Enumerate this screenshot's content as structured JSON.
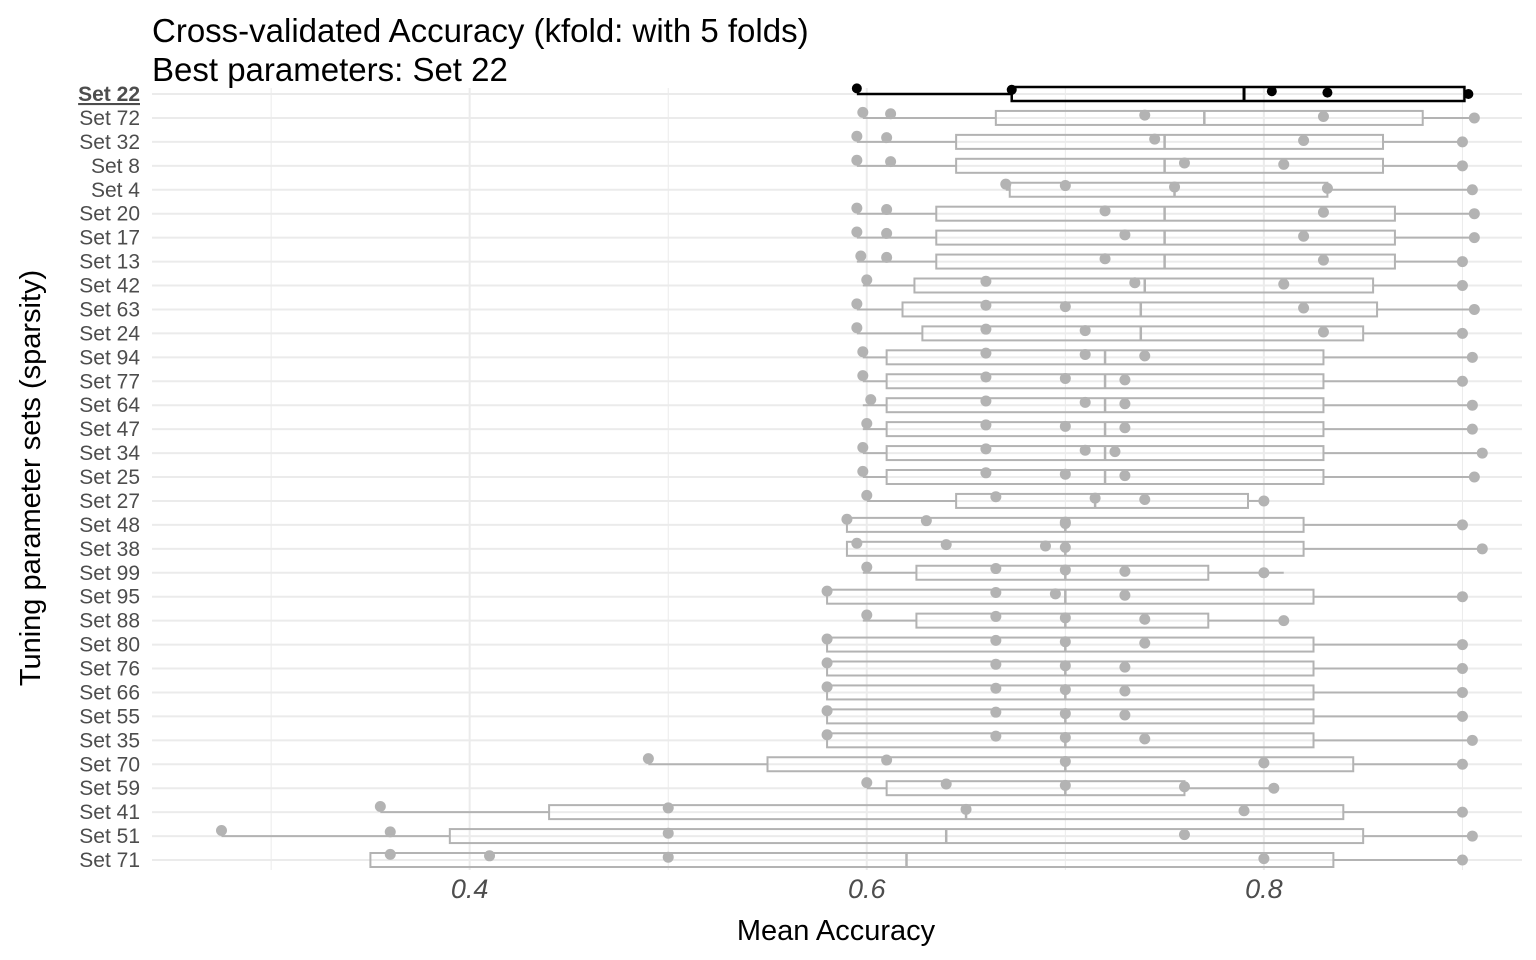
{
  "chart_data": {
    "type": "boxplot",
    "title": "Cross-validated Accuracy (kfold: with 5 folds)",
    "subtitle": "Best parameters: Set 22",
    "xlabel": "Mean Accuracy",
    "ylabel": "Tuning parameter sets (sparsity)",
    "xlim": [
      0.24,
      0.93
    ],
    "x_ticks": [
      0.4,
      0.6,
      0.8
    ],
    "x_tick_labels": [
      "0.4",
      "0.6",
      "0.8"
    ],
    "grid": true,
    "best_set": "Set 22",
    "colors": {
      "best": "#000000",
      "other": "#b3b3b3",
      "grid": "#ebebeb",
      "background": "#ffffff"
    },
    "y_tick_labels": [
      "Set 22",
      "Set 72",
      "Set 32",
      "Set 8",
      "Set 4",
      "Set 20",
      "Set 17",
      "Set 13",
      "Set 42",
      "Set 63",
      "Set 24",
      "Set 94",
      "Set 77",
      "Set 64",
      "Set 47",
      "Set 34",
      "Set 25",
      "Set 27",
      "Set 48",
      "Set 38",
      "Set 99",
      "Set 95",
      "Set 88",
      "Set 80",
      "Set 76",
      "Set 66",
      "Set 55",
      "Set 35",
      "Set 70",
      "Set 59",
      "Set 41",
      "Set 51",
      "Set 71"
    ],
    "labeled_sets": [
      {
        "name": "Set 22",
        "best": true,
        "min": 0.595,
        "q1": 0.673,
        "median": 0.79,
        "q3": 0.901,
        "max": 0.903,
        "points": [
          0.595,
          0.673,
          0.804,
          0.832,
          0.903
        ]
      },
      {
        "name": "Set 72",
        "min": 0.598,
        "q1": 0.665,
        "median": 0.77,
        "q3": 0.88,
        "max": 0.906,
        "points": [
          0.598,
          0.612,
          0.74,
          0.83,
          0.906
        ]
      },
      {
        "name": "Set 32",
        "min": 0.595,
        "q1": 0.645,
        "median": 0.75,
        "q3": 0.86,
        "max": 0.9,
        "points": [
          0.595,
          0.61,
          0.745,
          0.82,
          0.9
        ]
      },
      {
        "name": "Set 8",
        "min": 0.595,
        "q1": 0.645,
        "median": 0.75,
        "q3": 0.86,
        "max": 0.9,
        "points": [
          0.595,
          0.612,
          0.76,
          0.81,
          0.9
        ]
      },
      {
        "name": "Set 4",
        "min": 0.67,
        "q1": 0.672,
        "median": 0.755,
        "q3": 0.832,
        "max": 0.905,
        "points": [
          0.67,
          0.7,
          0.755,
          0.832,
          0.905
        ]
      },
      {
        "name": "Set 20",
        "min": 0.595,
        "q1": 0.635,
        "median": 0.75,
        "q3": 0.866,
        "max": 0.906,
        "points": [
          0.595,
          0.61,
          0.72,
          0.83,
          0.906
        ]
      },
      {
        "name": "Set 17",
        "min": 0.595,
        "q1": 0.635,
        "median": 0.75,
        "q3": 0.866,
        "max": 0.906,
        "points": [
          0.595,
          0.61,
          0.73,
          0.82,
          0.906
        ]
      },
      {
        "name": "Set 13",
        "min": 0.595,
        "q1": 0.635,
        "median": 0.75,
        "q3": 0.866,
        "max": 0.9,
        "points": [
          0.597,
          0.61,
          0.72,
          0.83,
          0.9
        ]
      },
      {
        "name": "Set 42",
        "min": 0.598,
        "q1": 0.624,
        "median": 0.74,
        "q3": 0.855,
        "max": 0.9,
        "points": [
          0.6,
          0.66,
          0.735,
          0.81,
          0.9
        ]
      },
      {
        "name": "Set 63",
        "min": 0.595,
        "q1": 0.618,
        "median": 0.738,
        "q3": 0.857,
        "max": 0.906,
        "points": [
          0.595,
          0.66,
          0.7,
          0.82,
          0.906
        ]
      },
      {
        "name": "Set 24",
        "min": 0.595,
        "q1": 0.628,
        "median": 0.738,
        "q3": 0.85,
        "max": 0.9,
        "points": [
          0.595,
          0.66,
          0.71,
          0.83,
          0.9
        ]
      },
      {
        "name": "Set 94",
        "min": 0.598,
        "q1": 0.61,
        "median": 0.72,
        "q3": 0.83,
        "max": 0.905,
        "points": [
          0.598,
          0.66,
          0.71,
          0.74,
          0.905
        ]
      },
      {
        "name": "Set 77",
        "min": 0.598,
        "q1": 0.61,
        "median": 0.72,
        "q3": 0.83,
        "max": 0.9,
        "points": [
          0.598,
          0.66,
          0.7,
          0.73,
          0.9
        ]
      },
      {
        "name": "Set 64",
        "min": 0.598,
        "q1": 0.61,
        "median": 0.72,
        "q3": 0.83,
        "max": 0.905,
        "points": [
          0.602,
          0.66,
          0.71,
          0.73,
          0.905
        ]
      },
      {
        "name": "Set 47",
        "min": 0.598,
        "q1": 0.61,
        "median": 0.72,
        "q3": 0.83,
        "max": 0.905,
        "points": [
          0.6,
          0.66,
          0.7,
          0.73,
          0.905
        ]
      },
      {
        "name": "Set 34",
        "min": 0.598,
        "q1": 0.61,
        "median": 0.72,
        "q3": 0.83,
        "max": 0.91,
        "points": [
          0.598,
          0.66,
          0.71,
          0.725,
          0.91
        ]
      },
      {
        "name": "Set 25",
        "min": 0.598,
        "q1": 0.61,
        "median": 0.72,
        "q3": 0.83,
        "max": 0.906,
        "points": [
          0.598,
          0.66,
          0.7,
          0.73,
          0.906
        ]
      },
      {
        "name": "Set 27",
        "min": 0.6,
        "q1": 0.645,
        "median": 0.715,
        "q3": 0.792,
        "max": 0.8,
        "points": [
          0.6,
          0.665,
          0.715,
          0.74,
          0.8
        ]
      },
      {
        "name": "Set 48",
        "min": 0.59,
        "q1": 0.59,
        "median": 0.7,
        "q3": 0.82,
        "max": 0.9,
        "points": [
          0.59,
          0.63,
          0.7,
          0.7,
          0.9
        ]
      },
      {
        "name": "Set 38",
        "min": 0.59,
        "q1": 0.59,
        "median": 0.7,
        "q3": 0.82,
        "max": 0.91,
        "points": [
          0.595,
          0.64,
          0.69,
          0.7,
          0.91
        ]
      },
      {
        "name": "Set 99",
        "min": 0.598,
        "q1": 0.625,
        "median": 0.7,
        "q3": 0.772,
        "max": 0.81,
        "points": [
          0.6,
          0.665,
          0.7,
          0.73,
          0.8
        ]
      },
      {
        "name": "Set 95",
        "min": 0.58,
        "q1": 0.58,
        "median": 0.7,
        "q3": 0.825,
        "max": 0.9,
        "points": [
          0.58,
          0.665,
          0.695,
          0.73,
          0.9
        ]
      },
      {
        "name": "Set 88",
        "min": 0.598,
        "q1": 0.625,
        "median": 0.7,
        "q3": 0.772,
        "max": 0.81,
        "points": [
          0.6,
          0.665,
          0.7,
          0.74,
          0.81
        ]
      },
      {
        "name": "Set 80",
        "min": 0.58,
        "q1": 0.58,
        "median": 0.7,
        "q3": 0.825,
        "max": 0.9,
        "points": [
          0.58,
          0.665,
          0.7,
          0.74,
          0.9
        ]
      },
      {
        "name": "Set 76",
        "min": 0.58,
        "q1": 0.58,
        "median": 0.7,
        "q3": 0.825,
        "max": 0.9,
        "points": [
          0.58,
          0.665,
          0.7,
          0.73,
          0.9
        ]
      },
      {
        "name": "Set 66",
        "min": 0.58,
        "q1": 0.58,
        "median": 0.7,
        "q3": 0.825,
        "max": 0.9,
        "points": [
          0.58,
          0.665,
          0.7,
          0.73,
          0.9
        ]
      },
      {
        "name": "Set 55",
        "min": 0.58,
        "q1": 0.58,
        "median": 0.7,
        "q3": 0.825,
        "max": 0.9,
        "points": [
          0.58,
          0.665,
          0.7,
          0.73,
          0.9
        ]
      },
      {
        "name": "Set 35",
        "min": 0.58,
        "q1": 0.58,
        "median": 0.7,
        "q3": 0.825,
        "max": 0.905,
        "points": [
          0.58,
          0.665,
          0.7,
          0.74,
          0.905
        ]
      },
      {
        "name": "Set 70",
        "min": 0.49,
        "q1": 0.55,
        "median": 0.7,
        "q3": 0.845,
        "max": 0.9,
        "points": [
          0.49,
          0.61,
          0.7,
          0.8,
          0.9
        ]
      },
      {
        "name": "Set 59",
        "min": 0.6,
        "q1": 0.61,
        "median": 0.7,
        "q3": 0.76,
        "max": 0.805,
        "points": [
          0.6,
          0.64,
          0.7,
          0.76,
          0.805
        ]
      },
      {
        "name": "Set 41",
        "min": 0.355,
        "q1": 0.44,
        "median": 0.65,
        "q3": 0.84,
        "max": 0.9,
        "points": [
          0.355,
          0.5,
          0.65,
          0.79,
          0.9
        ]
      },
      {
        "name": "Set 51",
        "min": 0.275,
        "q1": 0.39,
        "median": 0.64,
        "q3": 0.85,
        "max": 0.905,
        "points": [
          0.275,
          0.36,
          0.5,
          0.76,
          0.905
        ]
      },
      {
        "name": "Set 71",
        "min": 0.35,
        "q1": 0.35,
        "median": 0.62,
        "q3": 0.835,
        "max": 0.9,
        "points": [
          0.36,
          0.41,
          0.5,
          0.8,
          0.9
        ]
      }
    ]
  }
}
